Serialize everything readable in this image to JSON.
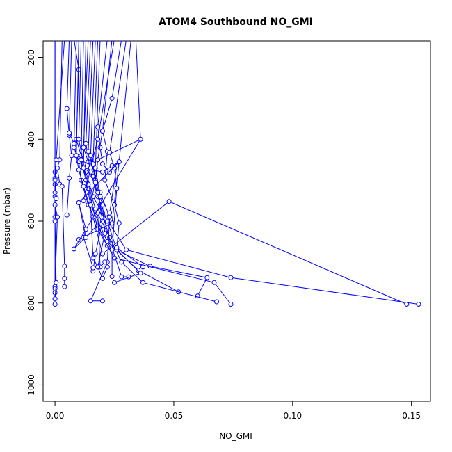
{
  "chart_data": {
    "type": "line",
    "title": "ATOM4 Southbound NO_GMI",
    "xlabel": "NO_GMI",
    "ylabel": "Pressure (mbar)",
    "xlim": [
      -0.005,
      0.158
    ],
    "ylim": [
      1040,
      160
    ],
    "y_reversed": true,
    "x_ticks": [
      0.0,
      0.05,
      0.1,
      0.15
    ],
    "x_tick_labels": [
      "0.00",
      "0.05",
      "0.10",
      "0.15"
    ],
    "y_ticks": [
      200,
      400,
      600,
      800,
      1000
    ],
    "y_tick_labels": [
      "200",
      "400",
      "600",
      "800",
      "1000"
    ],
    "series_color": "#0000ff",
    "grid": false,
    "legend": "none",
    "series": [
      {
        "points": [
          [
            0.0,
            155
          ],
          [
            0.0,
            480
          ],
          [
            0.0,
            510
          ],
          [
            0.0,
            540
          ],
          [
            0.0,
            590
          ],
          [
            0.0,
            760
          ],
          [
            0.0,
            775
          ],
          [
            0.0,
            790
          ],
          [
            0.0,
            803
          ]
        ]
      },
      {
        "points": [
          [
            0.0,
            155
          ],
          [
            0.0,
            495
          ],
          [
            0.0,
            530
          ],
          [
            0.0,
            560
          ],
          [
            0.001,
            590
          ],
          [
            0.0,
            760
          ],
          [
            0.0,
            765
          ]
        ]
      },
      {
        "points": [
          [
            0.003,
            155
          ],
          [
            0.002,
            450
          ],
          [
            0.001,
            470
          ],
          [
            0.002,
            510
          ],
          [
            0.003,
            515
          ],
          [
            0.004,
            710
          ],
          [
            0.004,
            740
          ],
          [
            0.004,
            760
          ]
        ]
      },
      {
        "points": [
          [
            0.004,
            155
          ],
          [
            0.0005,
            450
          ],
          [
            0.0,
            500
          ],
          [
            0.0005,
            545
          ],
          [
            0.0,
            600
          ],
          [
            0.0005,
            750
          ],
          [
            0.0,
            790
          ]
        ]
      },
      {
        "points": [
          [
            0.006,
            155
          ],
          [
            0.005,
            325
          ],
          [
            0.006,
            390
          ],
          [
            0.007,
            440
          ],
          [
            0.006,
            495
          ],
          [
            0.005,
            585
          ]
        ]
      },
      {
        "points": [
          [
            0.007,
            155
          ],
          [
            0.006,
            385
          ],
          [
            0.008,
            410
          ],
          [
            0.009,
            440
          ],
          [
            0.012,
            470
          ],
          [
            0.02,
            480
          ],
          [
            0.027,
            455
          ],
          [
            0.024,
            605
          ],
          [
            0.01,
            645
          ]
        ]
      },
      {
        "points": [
          [
            0.008,
            155
          ],
          [
            0.01,
            230
          ],
          [
            0.009,
            400
          ],
          [
            0.011,
            440
          ],
          [
            0.013,
            480
          ],
          [
            0.016,
            540
          ],
          [
            0.02,
            580
          ],
          [
            0.03,
            670
          ],
          [
            0.074,
            738
          ],
          [
            0.153,
            803
          ]
        ]
      },
      {
        "points": [
          [
            0.009,
            155
          ],
          [
            0.008,
            420
          ],
          [
            0.01,
            455
          ],
          [
            0.011,
            500
          ],
          [
            0.014,
            560
          ],
          [
            0.018,
            610
          ],
          [
            0.022,
            660
          ],
          [
            0.04,
            710
          ],
          [
            0.064,
            738
          ],
          [
            0.06,
            783
          ]
        ]
      },
      {
        "points": [
          [
            0.01,
            155
          ],
          [
            0.009,
            440
          ],
          [
            0.01,
            475
          ],
          [
            0.012,
            515
          ],
          [
            0.016,
            590
          ],
          [
            0.02,
            680
          ],
          [
            0.048,
            552
          ],
          [
            0.148,
            803
          ]
        ]
      },
      {
        "points": [
          [
            0.011,
            155
          ],
          [
            0.01,
            400
          ],
          [
            0.012,
            460
          ],
          [
            0.014,
            520
          ],
          [
            0.018,
            620
          ],
          [
            0.025,
            690
          ],
          [
            0.067,
            750
          ],
          [
            0.074,
            803
          ]
        ]
      },
      {
        "points": [
          [
            0.012,
            155
          ],
          [
            0.011,
            450
          ],
          [
            0.013,
            500
          ],
          [
            0.015,
            560
          ],
          [
            0.022,
            650
          ],
          [
            0.035,
            720
          ],
          [
            0.052,
            773
          ]
        ]
      },
      {
        "points": [
          [
            0.013,
            155
          ],
          [
            0.012,
            470
          ],
          [
            0.014,
            510
          ],
          [
            0.017,
            570
          ],
          [
            0.023,
            640
          ],
          [
            0.028,
            700
          ],
          [
            0.037,
            750
          ],
          [
            0.068,
            797
          ]
        ]
      },
      {
        "points": [
          [
            0.014,
            155
          ],
          [
            0.012,
            420
          ],
          [
            0.014,
            455
          ],
          [
            0.016,
            490
          ],
          [
            0.019,
            560
          ],
          [
            0.024,
            665
          ],
          [
            0.028,
            736
          ],
          [
            0.031,
            736
          ]
        ]
      },
      {
        "points": [
          [
            0.015,
            155
          ],
          [
            0.013,
            410
          ],
          [
            0.015,
            480
          ],
          [
            0.018,
            540
          ],
          [
            0.022,
            600
          ],
          [
            0.026,
            670
          ],
          [
            0.036,
            727
          ],
          [
            0.025,
            750
          ]
        ]
      },
      {
        "points": [
          [
            0.016,
            155
          ],
          [
            0.014,
            430
          ],
          [
            0.016,
            470
          ],
          [
            0.019,
            530
          ],
          [
            0.023,
            590
          ],
          [
            0.022,
            700
          ],
          [
            0.015,
            795
          ],
          [
            0.02,
            795
          ]
        ]
      },
      {
        "points": [
          [
            0.017,
            155
          ],
          [
            0.015,
            440
          ],
          [
            0.017,
            500
          ],
          [
            0.02,
            560
          ],
          [
            0.021,
            630
          ],
          [
            0.018,
            712
          ],
          [
            0.02,
            740
          ],
          [
            0.022,
            712
          ]
        ]
      },
      {
        "points": [
          [
            0.018,
            155
          ],
          [
            0.016,
            460
          ],
          [
            0.018,
            530
          ],
          [
            0.02,
            600
          ],
          [
            0.017,
            680
          ],
          [
            0.016,
            722
          ]
        ]
      },
      {
        "points": [
          [
            0.019,
            155
          ],
          [
            0.017,
            470
          ],
          [
            0.019,
            540
          ],
          [
            0.018,
            580
          ],
          [
            0.019,
            712
          ],
          [
            0.021,
            700
          ]
        ]
      },
      {
        "points": [
          [
            0.022,
            155
          ],
          [
            0.018,
            370
          ],
          [
            0.019,
            420
          ],
          [
            0.02,
            460
          ],
          [
            0.023,
            480
          ],
          [
            0.024,
            465
          ],
          [
            0.026,
            465
          ],
          [
            0.023,
            580
          ],
          [
            0.008,
            668
          ],
          [
            0.036,
            400
          ]
        ]
      },
      {
        "points": [
          [
            0.024,
            155
          ],
          [
            0.02,
            380
          ],
          [
            0.022,
            430
          ],
          [
            0.021,
            500
          ],
          [
            0.025,
            560
          ],
          [
            0.027,
            605
          ],
          [
            0.026,
            665
          ],
          [
            0.037,
            712
          ]
        ]
      },
      {
        "points": [
          [
            0.025,
            155
          ],
          [
            0.018,
            400
          ],
          [
            0.015,
            470
          ],
          [
            0.012,
            550
          ],
          [
            0.01,
            555
          ],
          [
            0.013,
            620
          ],
          [
            0.012,
            640
          ],
          [
            0.016,
            714
          ]
        ]
      },
      {
        "points": [
          [
            0.028,
            155
          ],
          [
            0.024,
            300
          ],
          [
            0.02,
            380
          ],
          [
            0.018,
            450
          ],
          [
            0.017,
            500
          ],
          [
            0.015,
            560
          ],
          [
            0.016,
            690
          ],
          [
            0.018,
            712
          ]
        ]
      },
      {
        "points": [
          [
            0.03,
            155
          ],
          [
            0.023,
            432
          ],
          [
            0.025,
            470
          ],
          [
            0.026,
            520
          ],
          [
            0.024,
            670
          ],
          [
            0.024,
            735
          ]
        ]
      },
      {
        "points": [
          [
            0.032,
            155
          ],
          [
            0.027,
            455
          ],
          [
            0.01,
            555
          ],
          [
            0.013,
            640
          ]
        ]
      },
      {
        "points": [
          [
            0.034,
            155
          ],
          [
            0.036,
            400
          ],
          [
            0.018,
            450
          ],
          [
            0.017,
            505
          ]
        ]
      }
    ]
  }
}
